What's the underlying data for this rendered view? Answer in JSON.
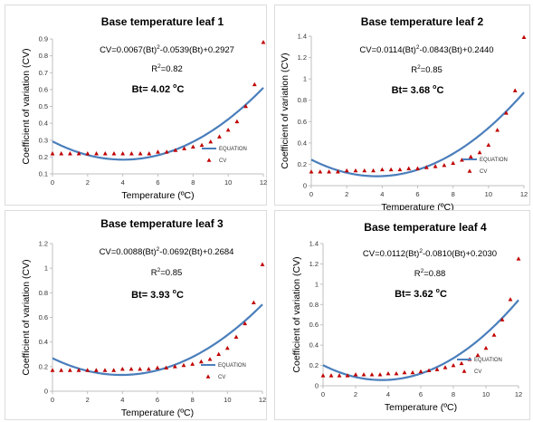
{
  "chart_data": [
    {
      "type": "scatter",
      "title": "Base temperature leaf 1",
      "equation": {
        "cv": "CV=0.0067(Bt)",
        "sup1": "2",
        "rest": "-0.0539(Bt)+0.2927"
      },
      "r2": {
        "r": "R",
        "sup": "2",
        "val": "=0.82"
      },
      "bt": {
        "label": "Bt= 4.02 ",
        "deg": "o",
        "unit": "C"
      },
      "xlabel": "Temperature (ºC)",
      "ylabel": "Coefficient of variation (CV)",
      "xlim": [
        0,
        12
      ],
      "ylim": [
        0.1,
        0.9
      ],
      "xticks": [
        "0",
        "2",
        "4",
        "6",
        "8",
        "10",
        "12"
      ],
      "yticks": [
        "0.1",
        "0.2",
        "0.3",
        "0.4",
        "0.5",
        "0.6",
        "0.7",
        "0.8",
        "0.9"
      ],
      "legend": [
        "EQUATION",
        "CV"
      ],
      "line_coef": [
        0.0067,
        -0.0539,
        0.2927
      ],
      "cv_x": [
        0,
        0.5,
        1,
        1.5,
        2,
        2.5,
        3,
        3.5,
        4,
        4.5,
        5,
        5.5,
        6,
        6.5,
        7,
        7.5,
        8,
        8.5,
        9,
        9.5,
        10,
        10.5,
        11,
        11.5,
        12
      ],
      "cv_y": [
        0.22,
        0.22,
        0.22,
        0.22,
        0.22,
        0.22,
        0.22,
        0.22,
        0.22,
        0.22,
        0.22,
        0.22,
        0.23,
        0.23,
        0.24,
        0.25,
        0.26,
        0.27,
        0.29,
        0.32,
        0.36,
        0.41,
        0.5,
        0.63,
        0.88
      ]
    },
    {
      "type": "scatter",
      "title": "Base temperature leaf 2",
      "equation": {
        "cv": "CV=0.0114(Bt)",
        "sup1": "2",
        "rest": "-0.0843(Bt)+0.2440"
      },
      "r2": {
        "r": "R",
        "sup": "2",
        "val": "=0.85"
      },
      "bt": {
        "label": "Bt= 3.68 ",
        "deg": "o",
        "unit": "C"
      },
      "xlabel": "Temperature (ºC)",
      "ylabel": "Coefficient of variation (CV)",
      "xlim": [
        0,
        12
      ],
      "ylim": [
        0,
        1.4
      ],
      "xticks": [
        "0",
        "2",
        "4",
        "6",
        "8",
        "10",
        "12"
      ],
      "yticks": [
        "0",
        "0.2",
        "0.4",
        "0.6",
        "0.8",
        "1",
        "1.2",
        "1.4"
      ],
      "legend": [
        "EQUATION",
        "CV"
      ],
      "line_coef": [
        0.0114,
        -0.0843,
        0.244
      ],
      "cv_x": [
        0,
        0.5,
        1,
        1.5,
        2,
        2.5,
        3,
        3.5,
        4,
        4.5,
        5,
        5.5,
        6,
        6.5,
        7,
        7.5,
        8,
        8.5,
        9,
        9.5,
        10,
        10.5,
        11,
        11.5,
        12
      ],
      "cv_y": [
        0.13,
        0.13,
        0.13,
        0.13,
        0.14,
        0.14,
        0.14,
        0.14,
        0.15,
        0.15,
        0.15,
        0.16,
        0.16,
        0.17,
        0.18,
        0.19,
        0.21,
        0.24,
        0.27,
        0.31,
        0.38,
        0.52,
        0.68,
        0.89,
        1.39
      ]
    },
    {
      "type": "scatter",
      "title": "Base temperature leaf 3",
      "equation": {
        "cv": "CV=0.0088(Bt)",
        "sup1": "2",
        "rest": "-0.0692(Bt)+0.2684"
      },
      "r2": {
        "r": "R",
        "sup": "2",
        "val": "=0.85"
      },
      "bt": {
        "label": "Bt= 3.93 ",
        "deg": "o",
        "unit": "C"
      },
      "xlabel": "Temperature (ºC)",
      "ylabel": "Coefficient of variation (CV)",
      "xlim": [
        0,
        12
      ],
      "ylim": [
        0,
        1.2
      ],
      "xticks": [
        "0",
        "2",
        "4",
        "6",
        "8",
        "10",
        "12"
      ],
      "yticks": [
        "0",
        "0.2",
        "0.4",
        "0.6",
        "0.8",
        "1",
        "1.2"
      ],
      "legend": [
        "EQUATION",
        "CV"
      ],
      "line_coef": [
        0.0088,
        -0.0692,
        0.2684
      ],
      "cv_x": [
        0,
        0.5,
        1,
        1.5,
        2,
        2.5,
        3,
        3.5,
        4,
        4.5,
        5,
        5.5,
        6,
        6.5,
        7,
        7.5,
        8,
        8.5,
        9,
        9.5,
        10,
        10.5,
        11,
        11.5,
        12
      ],
      "cv_y": [
        0.17,
        0.17,
        0.17,
        0.17,
        0.17,
        0.17,
        0.17,
        0.17,
        0.18,
        0.18,
        0.18,
        0.18,
        0.19,
        0.19,
        0.2,
        0.21,
        0.22,
        0.24,
        0.26,
        0.3,
        0.35,
        0.44,
        0.55,
        0.72,
        1.03
      ]
    },
    {
      "type": "scatter",
      "title": "Base temperature leaf 4",
      "equation": {
        "cv": "CV=0.0112(Bt)",
        "sup1": "2",
        "rest": "-0.0810(Bt)+0.2030"
      },
      "r2": {
        "r": "R",
        "sup": "2",
        "val": "=0.88"
      },
      "bt": {
        "label": "Bt= 3.62 ",
        "deg": "o",
        "unit": "C"
      },
      "xlabel": "Temperature (ºC)",
      "ylabel": "Coefficient of variation (CV)",
      "xlim": [
        0,
        12
      ],
      "ylim": [
        0,
        1.4
      ],
      "xticks": [
        "0",
        "2",
        "4",
        "6",
        "8",
        "10",
        "12"
      ],
      "yticks": [
        "0",
        "0.2",
        "0.4",
        "0.6",
        "0.8",
        "1",
        "1.2",
        "1.4"
      ],
      "legend": [
        "EQUATION",
        "CV"
      ],
      "line_coef": [
        0.0112,
        -0.081,
        0.203
      ],
      "cv_x": [
        0,
        0.5,
        1,
        1.5,
        2,
        2.5,
        3,
        3.5,
        4,
        4.5,
        5,
        5.5,
        6,
        6.5,
        7,
        7.5,
        8,
        8.5,
        9,
        9.5,
        10,
        10.5,
        11,
        11.5,
        12
      ],
      "cv_y": [
        0.1,
        0.1,
        0.1,
        0.1,
        0.11,
        0.11,
        0.11,
        0.11,
        0.12,
        0.12,
        0.13,
        0.13,
        0.14,
        0.15,
        0.16,
        0.18,
        0.2,
        0.22,
        0.26,
        0.3,
        0.37,
        0.5,
        0.65,
        0.85,
        1.25
      ]
    }
  ],
  "colors": {
    "line": "#4a7ebb",
    "marker": "#c00000",
    "axis": "#bfbfbf"
  }
}
